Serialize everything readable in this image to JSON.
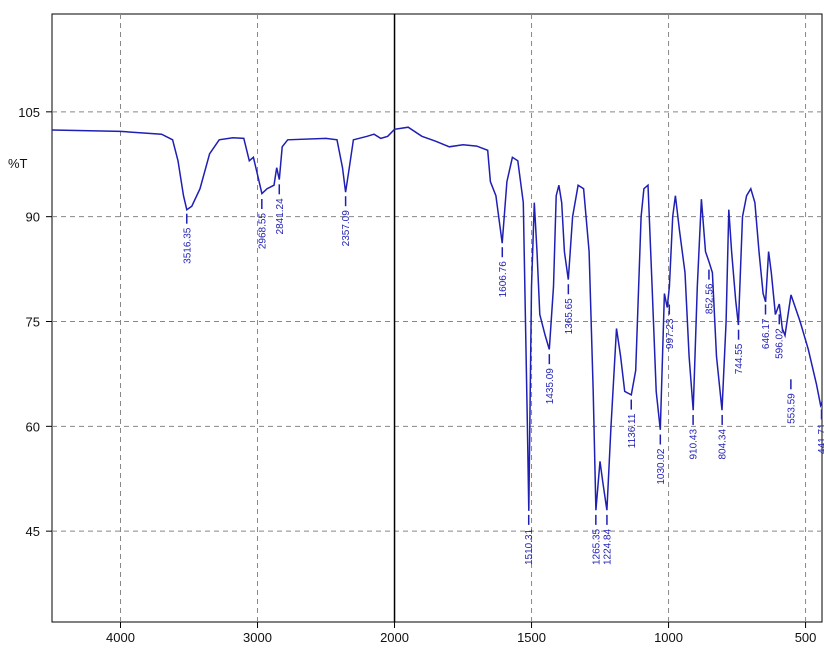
{
  "chart_data": {
    "type": "line",
    "y_label": "%T",
    "xlim": [
      4500,
      440
    ],
    "ylim": [
      32,
      119
    ],
    "xticks": [
      4000,
      3000,
      2000,
      1500,
      1000,
      500
    ],
    "yticks": [
      45,
      60,
      75,
      90,
      105
    ],
    "scale_break": 2000,
    "expand_below_break": 2,
    "grid": true,
    "color": "#1f1fb4",
    "x": [
      4500,
      4000,
      3700,
      3620,
      3580,
      3540,
      3516,
      3480,
      3420,
      3350,
      3280,
      3180,
      3100,
      3060,
      3030,
      3000,
      2968,
      2930,
      2880,
      2860,
      2841,
      2820,
      2780,
      2500,
      2420,
      2380,
      2357,
      2330,
      2300,
      2200,
      2150,
      2100,
      2050,
      2000,
      1950,
      1900,
      1850,
      1800,
      1750,
      1700,
      1660,
      1650,
      1630,
      1607,
      1590,
      1570,
      1550,
      1530,
      1515,
      1510,
      1500,
      1490,
      1480,
      1470,
      1450,
      1435,
      1420,
      1410,
      1400,
      1390,
      1380,
      1366,
      1350,
      1330,
      1310,
      1290,
      1275,
      1265,
      1250,
      1240,
      1225,
      1210,
      1190,
      1175,
      1160,
      1136,
      1120,
      1100,
      1090,
      1075,
      1060,
      1045,
      1030,
      1015,
      1005,
      997,
      985,
      975,
      960,
      940,
      925,
      910,
      895,
      880,
      865,
      852,
      840,
      825,
      805,
      790,
      780,
      770,
      755,
      745,
      730,
      715,
      700,
      685,
      670,
      655,
      646,
      635,
      625,
      610,
      596,
      585,
      575,
      560,
      553,
      520,
      490,
      460,
      445,
      440
    ],
    "y": [
      102.4,
      102.2,
      101.8,
      101,
      98,
      93,
      91,
      91.5,
      94,
      99,
      101,
      101.3,
      101.2,
      98,
      98.5,
      96,
      93.3,
      94,
      94.5,
      97,
      95.3,
      100,
      101,
      101.2,
      101,
      97,
      93.5,
      97,
      101,
      101.5,
      101.8,
      101.2,
      101.5,
      102.5,
      102.8,
      101.5,
      100.8,
      100,
      100.3,
      100.1,
      99.5,
      95,
      93,
      86.2,
      95,
      98.5,
      98,
      92,
      60,
      47.9,
      80,
      92,
      85,
      76,
      73,
      71,
      80,
      93,
      94.5,
      92,
      85,
      81,
      90,
      94.5,
      94,
      85,
      65,
      48,
      55,
      52,
      48,
      60,
      74,
      70,
      65,
      64.5,
      68,
      90,
      94,
      94.5,
      80,
      65,
      59.5,
      79,
      77,
      80,
      90,
      93,
      88,
      82,
      70,
      62.3,
      80,
      92.5,
      85,
      83.5,
      82,
      70,
      62.3,
      75,
      91,
      85,
      78,
      74.5,
      90,
      93,
      94,
      92,
      85,
      79,
      77.8,
      85,
      82,
      76,
      77.5,
      74,
      73,
      77,
      78.8,
      75,
      71,
      66,
      63,
      63.5
    ],
    "peaks": [
      {
        "x": 3516.35,
        "y": 91
      },
      {
        "x": 2968.55,
        "y": 93.1
      },
      {
        "x": 2841.24,
        "y": 95.2
      },
      {
        "x": 2357.09,
        "y": 93.5
      },
      {
        "x": 1606.76,
        "y": 86.2
      },
      {
        "x": 1510.31,
        "y": 47.9
      },
      {
        "x": 1435.09,
        "y": 70.9
      },
      {
        "x": 1365.65,
        "y": 80.9
      },
      {
        "x": 1265.35,
        "y": 47.9
      },
      {
        "x": 1224.84,
        "y": 47.9
      },
      {
        "x": 1136.11,
        "y": 64.4
      },
      {
        "x": 1030.02,
        "y": 59.4
      },
      {
        "x": 997.23,
        "y": 78
      },
      {
        "x": 910.43,
        "y": 62.2
      },
      {
        "x": 852.56,
        "y": 83
      },
      {
        "x": 804.34,
        "y": 62.2
      },
      {
        "x": 744.55,
        "y": 74.4
      },
      {
        "x": 646.17,
        "y": 78
      },
      {
        "x": 596.02,
        "y": 76.6
      },
      {
        "x": 553.59,
        "y": 67.3
      },
      {
        "x": 441.71,
        "y": 63
      }
    ]
  }
}
